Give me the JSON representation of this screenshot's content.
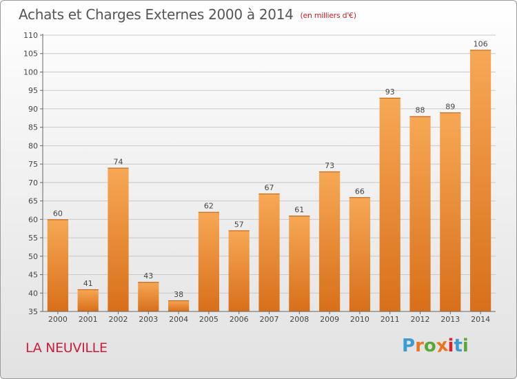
{
  "header": {
    "title": "Achats et Charges Externes 2000 à 2014",
    "subtitle": "(en milliers d'€)"
  },
  "footer": {
    "place": "LA NEUVILLE",
    "logo": "Proxiti",
    "logo_colors": [
      "#3a9bd5",
      "#e8771e",
      "#5aa83a",
      "#e8771e",
      "#d8232a",
      "#3a9bd5",
      "#5aa83a"
    ]
  },
  "chart_data": {
    "type": "bar",
    "categories": [
      "2000",
      "2001",
      "2002",
      "2003",
      "2004",
      "2005",
      "2006",
      "2007",
      "2008",
      "2009",
      "2010",
      "2011",
      "2012",
      "2013",
      "2014"
    ],
    "values": [
      60,
      41,
      74,
      43,
      38,
      62,
      57,
      67,
      61,
      73,
      66,
      93,
      88,
      89,
      106
    ],
    "data_labels": [
      "60",
      "41",
      "74",
      "43",
      "38",
      "62",
      "57",
      "67",
      "61",
      "73",
      "66",
      "93",
      "88",
      "89",
      "106"
    ],
    "ylim": [
      35,
      110
    ],
    "yticks": [
      35,
      40,
      45,
      50,
      55,
      60,
      65,
      70,
      75,
      80,
      85,
      90,
      95,
      100,
      105,
      110
    ],
    "grid": true,
    "bar_color_top": "#f7a855",
    "bar_color_bottom": "#d86f1a"
  }
}
